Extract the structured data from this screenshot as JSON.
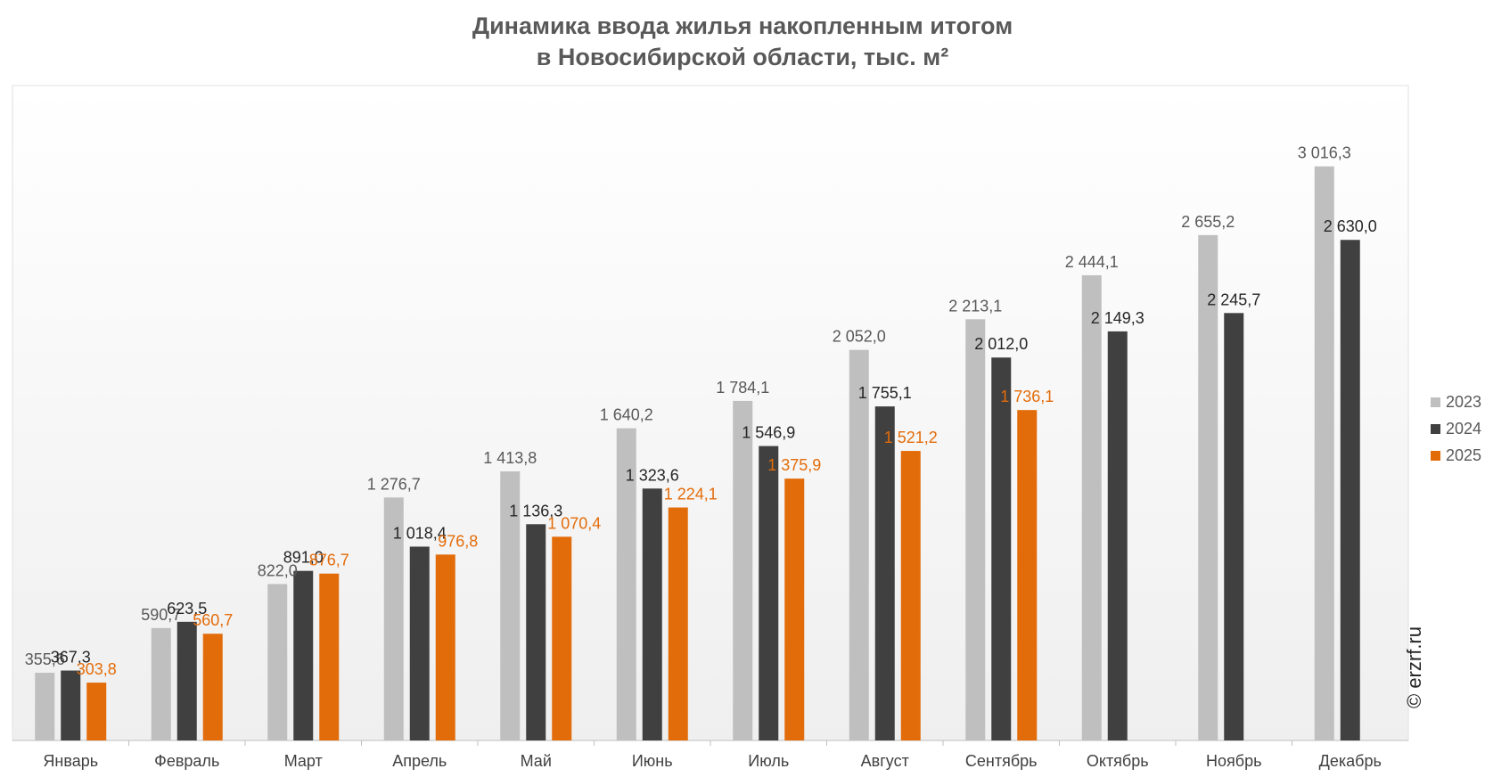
{
  "chart_data": {
    "type": "bar",
    "title": [
      "Динамика ввода жилья накопленным итогом",
      "в Новосибирской области, тыс. м²"
    ],
    "categories": [
      "Январь",
      "Февраль",
      "Март",
      "Апрель",
      "Май",
      "Июнь",
      "Июль",
      "Август",
      "Сентябрь",
      "Октябрь",
      "Ноябрь",
      "Декабрь"
    ],
    "series": [
      {
        "name": "2023",
        "color": "#bfbfbf",
        "label_color": "#595959",
        "values": [
          355.6,
          590.7,
          822.0,
          1276.7,
          1413.8,
          1640.2,
          1784.1,
          2052.0,
          2213.1,
          2444.1,
          2655.2,
          3016.3
        ],
        "labels": [
          "355,6",
          "590,7",
          "822,0",
          "1 276,7",
          "1 413,8",
          "1 640,2",
          "1 784,1",
          "2 052,0",
          "2 213,1",
          "2 444,1",
          "2 655,2",
          "3 016,3"
        ]
      },
      {
        "name": "2024",
        "color": "#404040",
        "label_color": "#262626",
        "values": [
          367.3,
          623.5,
          891.0,
          1018.4,
          1136.3,
          1323.6,
          1546.9,
          1755.1,
          2012.0,
          2149.3,
          2245.7,
          2630.0
        ],
        "labels": [
          "367,3",
          "623,5",
          "891,0",
          "1 018,4",
          "1 136,3",
          "1 323,6",
          "1 546,9",
          "1 755,1",
          "2 012,0",
          "2 149,3",
          "2 245,7",
          "2 630,0"
        ]
      },
      {
        "name": "2025",
        "color": "#e36c0a",
        "label_color": "#e36c0a",
        "values": [
          303.8,
          560.7,
          876.7,
          976.8,
          1070.4,
          1224.1,
          1375.9,
          1521.2,
          1736.1,
          null,
          null,
          null
        ],
        "labels": [
          "303,8",
          "560,7",
          "876,7",
          "976,8",
          "1 070,4",
          "1 224,1",
          "1 375,9",
          "1 521,2",
          "1 736,1",
          null,
          null,
          null
        ]
      }
    ],
    "ylim": [
      0,
      3200
    ],
    "legend_position": "right",
    "grid": false
  },
  "watermark": "© erzrf.ru"
}
